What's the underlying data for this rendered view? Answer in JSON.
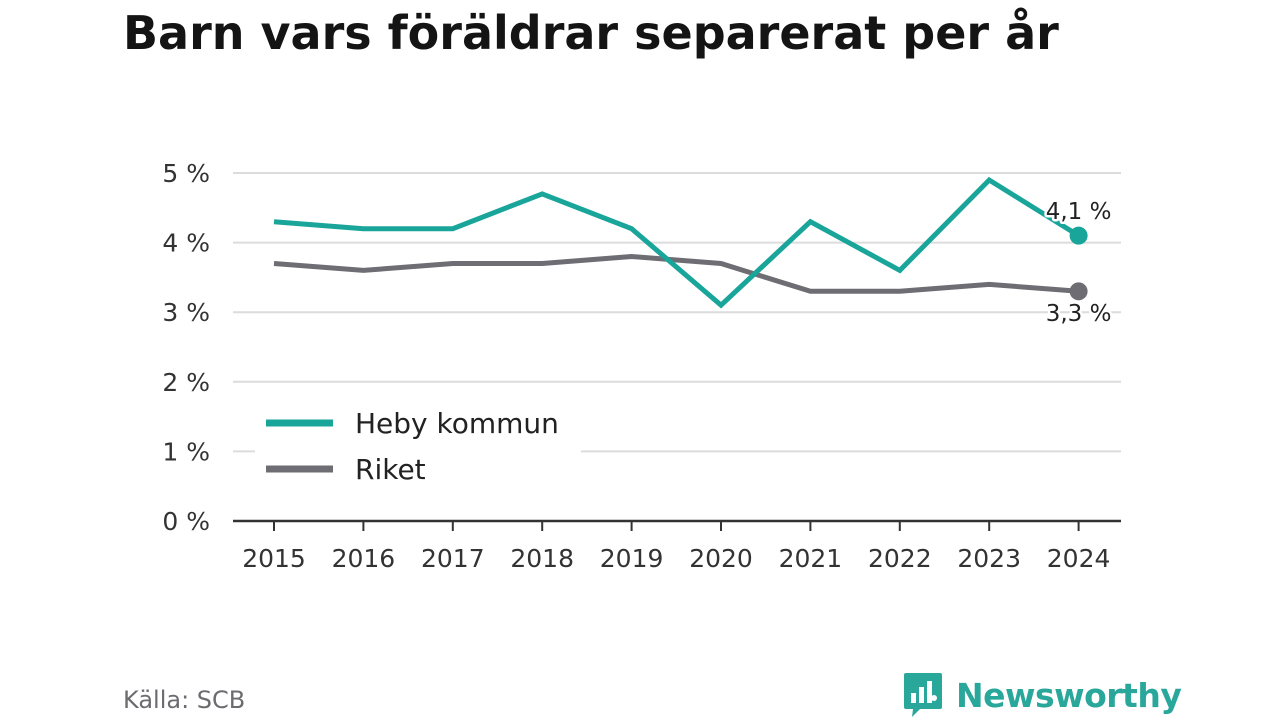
{
  "chart_data": {
    "type": "line",
    "title": "Barn vars föräldrar separerat per år",
    "x": [
      "2015",
      "2016",
      "2017",
      "2018",
      "2019",
      "2020",
      "2021",
      "2022",
      "2023",
      "2024"
    ],
    "series": [
      {
        "name": "Heby kommun",
        "color": "#1aa59a",
        "values": [
          4.3,
          4.2,
          4.2,
          4.7,
          4.2,
          3.1,
          4.3,
          3.6,
          4.9,
          4.1
        ],
        "end_label": "4,1 %"
      },
      {
        "name": "Riket",
        "color": "#6e6d73",
        "values": [
          3.7,
          3.6,
          3.7,
          3.7,
          3.8,
          3.7,
          3.3,
          3.3,
          3.4,
          3.3
        ],
        "end_label": "3,3 %"
      }
    ],
    "y_ticks": [
      {
        "value": 0,
        "label": "0 %"
      },
      {
        "value": 1,
        "label": "1 %"
      },
      {
        "value": 2,
        "label": "2 %"
      },
      {
        "value": 3,
        "label": "3 %"
      },
      {
        "value": 4,
        "label": "4 %"
      },
      {
        "value": 5,
        "label": "5 %"
      }
    ],
    "ylim": [
      0,
      5
    ],
    "grid": true,
    "legend_position": "bottom-left"
  },
  "source": "Källa: SCB",
  "brand": {
    "name": "Newsworthy",
    "icon": "newsworthy-logo-icon",
    "color": "#2aa79b"
  }
}
